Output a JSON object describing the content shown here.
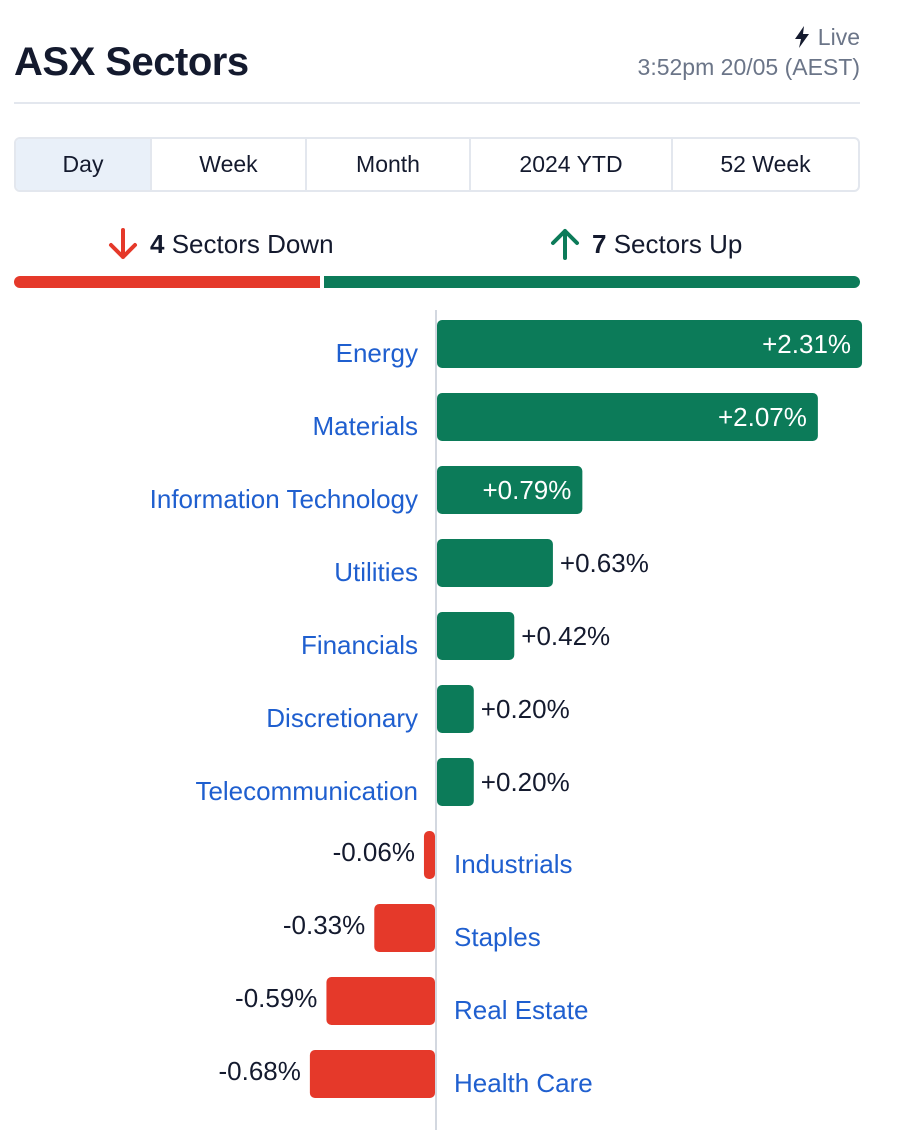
{
  "header": {
    "title": "ASX Sectors",
    "live_label": "Live",
    "timestamp": "3:52pm 20/05 (AEST)",
    "live_icon": "lightning-bolt-icon"
  },
  "tabs": [
    {
      "label": "Day",
      "active": true
    },
    {
      "label": "Week",
      "active": false
    },
    {
      "label": "Month",
      "active": false
    },
    {
      "label": "2024 YTD",
      "active": false
    },
    {
      "label": "52 Week",
      "active": false
    }
  ],
  "summary": {
    "down_count": "4",
    "down_label": "Sectors Down",
    "up_count": "7",
    "up_label": "Sectors Up",
    "down_icon": "arrow-down-icon",
    "up_icon": "arrow-up-icon"
  },
  "colors": {
    "up": "#0c7b59",
    "down": "#e5392a",
    "link": "#1f5fcf",
    "text": "#141a2e",
    "muted": "#6b7588"
  },
  "chart_data": {
    "type": "bar",
    "orientation": "horizontal",
    "categories": [
      "Energy",
      "Materials",
      "Information Technology",
      "Utilities",
      "Financials",
      "Discretionary",
      "Telecommunication",
      "Industrials",
      "Staples",
      "Real Estate",
      "Health Care"
    ],
    "values": [
      2.31,
      2.07,
      0.79,
      0.63,
      0.42,
      0.2,
      0.2,
      -0.06,
      -0.33,
      -0.59,
      -0.68
    ],
    "labels": [
      "+2.31%",
      "+2.07%",
      "+0.79%",
      "+0.63%",
      "+0.42%",
      "+0.20%",
      "+0.20%",
      "-0.06%",
      "-0.33%",
      "-0.59%",
      "-0.68%"
    ],
    "title": "",
    "xlabel": "",
    "ylabel": "",
    "grid": false
  }
}
